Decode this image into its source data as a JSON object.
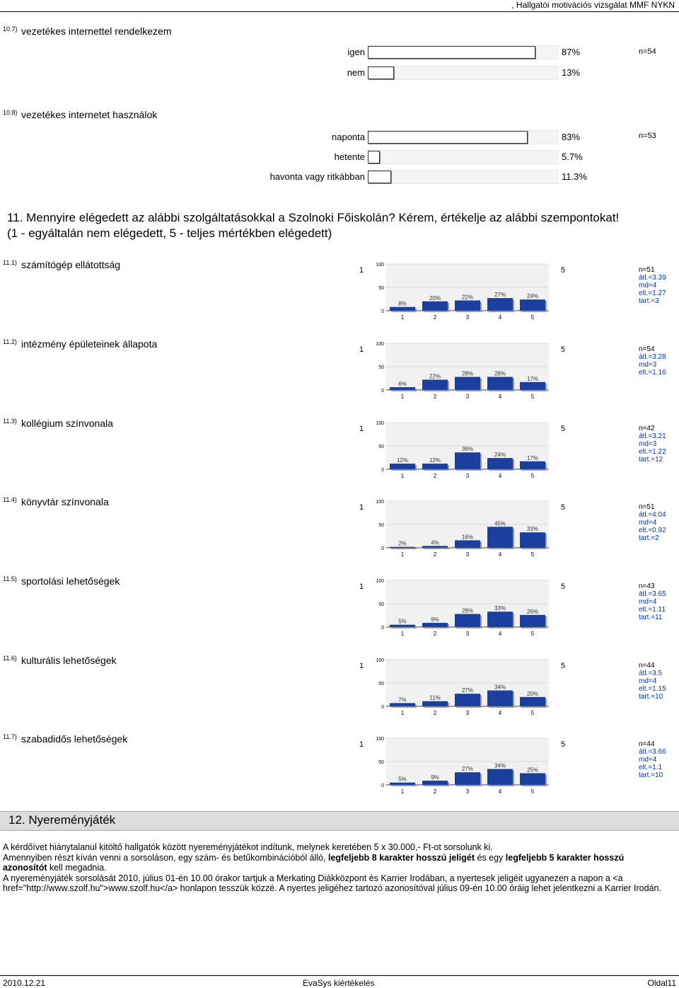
{
  "header": {
    "text": ", Hallgatói motivációs vizsgálat MMF NYKN"
  },
  "q10_7": {
    "num": "10.7)",
    "text": "vezetékes internettel rendelkezem",
    "n": "n=54",
    "rows": [
      {
        "label": "igen",
        "value": 87,
        "pct": "87%"
      },
      {
        "label": "nem",
        "value": 13,
        "pct": "13%"
      }
    ]
  },
  "q10_8": {
    "num": "10.8)",
    "text": "vezetékes internetet használok",
    "n": "n=53",
    "rows": [
      {
        "label": "naponta",
        "value": 83,
        "pct": "83%"
      },
      {
        "label": "hetente",
        "value": 5.7,
        "pct": "5.7%"
      },
      {
        "label": "havonta vagy ritkábban",
        "value": 11.3,
        "pct": "11.3%"
      }
    ]
  },
  "section11": {
    "title_line1": "11. Mennyire elégedett az alábbi szolgáltatásokkal a Szolnoki Főiskolán? Kérem, értékelje az alábbi szempontokat!",
    "title_line2": "(1 - egyáltalán nem elégedett, 5 - teljes mértékben elégedett)",
    "scale_low": "1",
    "scale_high": "5",
    "items": [
      {
        "num": "11.1)",
        "text": "számítógép ellátottság",
        "stats": [
          "n=51",
          "átl.=3.39",
          "md=4",
          "elt.=1.27",
          "tart.=3"
        ]
      },
      {
        "num": "11.2)",
        "text": "intézmény épületeinek állapota",
        "stats": [
          "n=54",
          "átl.=3.28",
          "md=3",
          "elt.=1.16"
        ]
      },
      {
        "num": "11.3)",
        "text": "kollégium színvonala",
        "stats": [
          "n=42",
          "átl.=3.21",
          "md=3",
          "elt.=1.22",
          "tart.=12"
        ]
      },
      {
        "num": "11.4)",
        "text": "könyvtár színvonala",
        "stats": [
          "n=51",
          "átl.=4.04",
          "md=4",
          "elt.=0.92",
          "tart.=2"
        ]
      },
      {
        "num": "11.5)",
        "text": "sportolási lehetőségek",
        "stats": [
          "n=43",
          "átl.=3.65",
          "md=4",
          "elt.=1.11",
          "tart.=11"
        ]
      },
      {
        "num": "11.6)",
        "text": "kulturális lehetőségek",
        "stats": [
          "n=44",
          "átl.=3.5",
          "md=4",
          "elt.=1.15",
          "tart.=10"
        ]
      },
      {
        "num": "11.7)",
        "text": "szabadidős lehetőségek",
        "stats": [
          "n=44",
          "átl.=3.66",
          "md=4",
          "elt.=1.1",
          "tart.=10"
        ]
      }
    ]
  },
  "chart_data": [
    {
      "type": "bar",
      "categories": [
        "1",
        "2",
        "3",
        "4",
        "5"
      ],
      "values": [
        8,
        20,
        22,
        27,
        24
      ],
      "labels": [
        "8%",
        "20%",
        "22%",
        "27%",
        "24%"
      ],
      "ylim": [
        0,
        100
      ],
      "yticks": [
        "0",
        "50",
        "100"
      ]
    },
    {
      "type": "bar",
      "categories": [
        "1",
        "2",
        "3",
        "4",
        "5"
      ],
      "values": [
        6,
        22,
        28,
        28,
        17
      ],
      "labels": [
        "6%",
        "22%",
        "28%",
        "28%",
        "17%"
      ],
      "ylim": [
        0,
        100
      ],
      "yticks": [
        "0",
        "50",
        "100"
      ]
    },
    {
      "type": "bar",
      "categories": [
        "1",
        "2",
        "3",
        "4",
        "5"
      ],
      "values": [
        12,
        12,
        36,
        24,
        17
      ],
      "labels": [
        "12%",
        "12%",
        "36%",
        "24%",
        "17%"
      ],
      "ylim": [
        0,
        100
      ],
      "yticks": [
        "0",
        "50",
        "100"
      ]
    },
    {
      "type": "bar",
      "categories": [
        "1",
        "2",
        "3",
        "4",
        "5"
      ],
      "values": [
        2,
        4,
        16,
        45,
        33
      ],
      "labels": [
        "2%",
        "4%",
        "16%",
        "45%",
        "33%"
      ],
      "ylim": [
        0,
        100
      ],
      "yticks": [
        "0",
        "50",
        "100"
      ]
    },
    {
      "type": "bar",
      "categories": [
        "1",
        "2",
        "3",
        "4",
        "5"
      ],
      "values": [
        5,
        9,
        28,
        33,
        26
      ],
      "labels": [
        "5%",
        "9%",
        "28%",
        "33%",
        "26%"
      ],
      "ylim": [
        0,
        100
      ],
      "yticks": [
        "0",
        "50",
        "100"
      ]
    },
    {
      "type": "bar",
      "categories": [
        "1",
        "2",
        "3",
        "4",
        "5"
      ],
      "values": [
        7,
        11,
        27,
        34,
        20
      ],
      "labels": [
        "7%",
        "11%",
        "27%",
        "34%",
        "20%"
      ],
      "ylim": [
        0,
        100
      ],
      "yticks": [
        "0",
        "50",
        "100"
      ]
    },
    {
      "type": "bar",
      "categories": [
        "1",
        "2",
        "3",
        "4",
        "5"
      ],
      "values": [
        5,
        9,
        27,
        34,
        25
      ],
      "labels": [
        "5%",
        "9%",
        "27%",
        "34%",
        "25%"
      ],
      "ylim": [
        0,
        100
      ],
      "yticks": [
        "0",
        "50",
        "100"
      ]
    }
  ],
  "section12": {
    "title": "12. Nyereményjáték",
    "p1": "A kérdőívet hiánytalanul kitöltő hallgatók között nyereményjátékot indítunk, melynek keretében 5 x 30.000,- Ft-ot sorsolunk ki.",
    "p2a": "Amennyiben részt kíván venni a sorsoláson, egy szám- és betűkombinációból álló, ",
    "p2b": "legfeljebb 8 karakter hosszú jeligét",
    "p2c": " és egy ",
    "p2d": "legfeljebb 5 karakter hosszú azonosítót",
    "p2e": " kell megadnia.",
    "p3": "A nyereményjáték sorsolását 2010, július 01-én 10.00 órakor tartjuk a Merkating Diákközpont és Karrier Irodában, a nyertesek jeligéit ugyanezen a napon a <a href=\"http://www.szolf.hu\">www.szolf.hu</a> honlapon tesszük közzé. A nyertes jeligéhez tartozó azonosítóval július 09-én 10.00 óráig lehet jelentkezni a Karrier Irodán."
  },
  "footer": {
    "date": "2010.12.21",
    "center": "EvaSys kiértékelés",
    "page": "Oldal11"
  }
}
